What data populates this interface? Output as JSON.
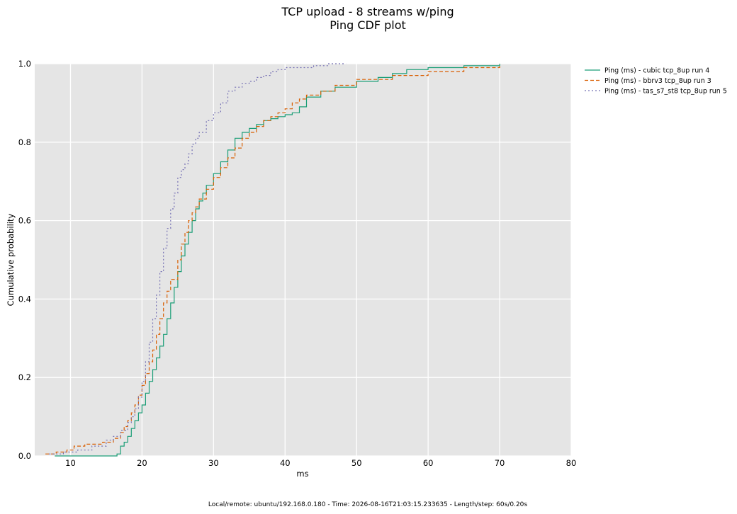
{
  "chart_data": {
    "type": "line",
    "title": "TCP upload - 8 streams w/ping",
    "subtitle": "Ping CDF plot",
    "xlabel": "ms",
    "ylabel": "Cumulative probability",
    "xlim": [
      5,
      80
    ],
    "ylim": [
      0,
      1
    ],
    "xticks": [
      "10",
      "20",
      "30",
      "40",
      "50",
      "60",
      "70",
      "80"
    ],
    "yticks": [
      "0.0",
      "0.2",
      "0.4",
      "0.6",
      "0.8",
      "1.0"
    ],
    "grid": true,
    "legend_position": "outside-top-right",
    "series": [
      {
        "name": "Ping (ms) - cubic tcp_8up run 4",
        "color": "#1b9e77",
        "style": "solid",
        "x": [
          7.8,
          16.5,
          17.0,
          17.5,
          18.0,
          18.5,
          19.0,
          19.5,
          20.0,
          20.5,
          21.0,
          21.5,
          22.0,
          22.5,
          23.0,
          23.5,
          24.0,
          24.5,
          25.0,
          25.5,
          26.0,
          26.5,
          27.0,
          27.5,
          28.0,
          28.5,
          29.0,
          30.0,
          31.0,
          32.0,
          33.0,
          34.0,
          35.0,
          36.0,
          37.0,
          38.0,
          39.0,
          40.0,
          41.0,
          42.0,
          43.0,
          45.0,
          47.0,
          50.0,
          53.0,
          55.0,
          57.0,
          60.0,
          65.0,
          70.0
        ],
        "y": [
          0.0,
          0.005,
          0.025,
          0.035,
          0.05,
          0.07,
          0.09,
          0.11,
          0.13,
          0.16,
          0.19,
          0.22,
          0.25,
          0.28,
          0.31,
          0.35,
          0.39,
          0.43,
          0.47,
          0.51,
          0.54,
          0.57,
          0.6,
          0.63,
          0.65,
          0.67,
          0.69,
          0.72,
          0.75,
          0.78,
          0.81,
          0.825,
          0.835,
          0.845,
          0.855,
          0.86,
          0.865,
          0.87,
          0.875,
          0.89,
          0.915,
          0.93,
          0.94,
          0.955,
          0.965,
          0.975,
          0.985,
          0.99,
          0.995,
          1.0
        ]
      },
      {
        "name": "Ping (ms) - bbrv3 tcp_8up run 3",
        "color": "#d95f02",
        "style": "dashed",
        "x": [
          6.5,
          8.0,
          9.5,
          10.5,
          12.0,
          14.5,
          16.0,
          17.0,
          17.5,
          18.0,
          18.5,
          19.0,
          19.5,
          20.0,
          20.5,
          21.0,
          21.5,
          22.0,
          22.5,
          23.0,
          23.5,
          24.0,
          25.0,
          25.5,
          26.0,
          26.5,
          27.0,
          27.5,
          28.0,
          29.0,
          30.0,
          31.0,
          32.0,
          33.0,
          34.0,
          35.0,
          36.0,
          37.0,
          38.0,
          39.0,
          40.0,
          41.0,
          42.0,
          43.0,
          45.0,
          47.0,
          50.0,
          55.0,
          60.0,
          65.0,
          70.0
        ],
        "y": [
          0.005,
          0.01,
          0.015,
          0.025,
          0.03,
          0.035,
          0.045,
          0.06,
          0.075,
          0.09,
          0.11,
          0.13,
          0.155,
          0.18,
          0.21,
          0.24,
          0.27,
          0.31,
          0.35,
          0.39,
          0.42,
          0.45,
          0.5,
          0.54,
          0.57,
          0.6,
          0.62,
          0.635,
          0.655,
          0.68,
          0.71,
          0.735,
          0.76,
          0.785,
          0.81,
          0.825,
          0.84,
          0.855,
          0.865,
          0.875,
          0.885,
          0.9,
          0.91,
          0.92,
          0.93,
          0.945,
          0.96,
          0.97,
          0.98,
          0.99,
          1.0
        ]
      },
      {
        "name": "Ping (ms) - tas_s7_st8 tcp_8up run 5",
        "color": "#7570b3",
        "style": "dotted",
        "x": [
          7.0,
          9.0,
          11.0,
          13.0,
          15.0,
          16.0,
          17.0,
          18.0,
          18.5,
          19.0,
          19.5,
          20.0,
          20.5,
          21.0,
          21.5,
          22.0,
          22.5,
          23.0,
          23.5,
          24.0,
          24.5,
          25.0,
          25.5,
          26.0,
          26.5,
          27.0,
          27.5,
          28.0,
          29.0,
          30.0,
          31.0,
          32.0,
          33.0,
          34.0,
          35.0,
          36.0,
          37.0,
          38.0,
          39.0,
          40.0,
          42.0,
          44.0,
          46.0,
          48.5
        ],
        "y": [
          0.005,
          0.01,
          0.015,
          0.025,
          0.04,
          0.05,
          0.065,
          0.085,
          0.1,
          0.12,
          0.15,
          0.19,
          0.24,
          0.29,
          0.35,
          0.41,
          0.47,
          0.53,
          0.58,
          0.63,
          0.67,
          0.71,
          0.73,
          0.745,
          0.77,
          0.795,
          0.81,
          0.825,
          0.855,
          0.875,
          0.9,
          0.93,
          0.94,
          0.95,
          0.955,
          0.965,
          0.97,
          0.98,
          0.985,
          0.99,
          0.99,
          0.995,
          1.0,
          1.0
        ]
      }
    ]
  },
  "footer": "Local/remote: ubuntu/192.168.0.180 - Time: 2026-08-16T21:03:15.233635 - Length/step: 60s/0.20s"
}
